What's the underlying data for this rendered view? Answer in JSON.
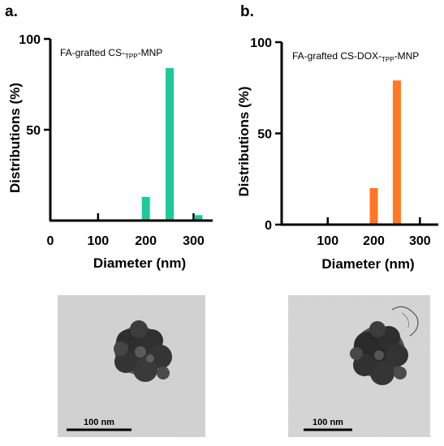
{
  "panels": [
    {
      "label": "a.",
      "annotation_prefix": "FA-grafted CS-",
      "annotation_sub": "TPP",
      "annotation_suffix": "-MNP"
    },
    {
      "label": "b.",
      "annotation_prefix": "FA-grafted CS-DOX-",
      "annotation_sub": "TPP",
      "annotation_suffix": "-MNP"
    }
  ],
  "chart_data": [
    {
      "type": "bar",
      "xlabel": "Diameter (nm)",
      "ylabel": "Distributions (%)",
      "xlim": [
        0,
        340
      ],
      "ylim": [
        0,
        100
      ],
      "xticks": [
        "0",
        "100",
        "200",
        "300"
      ],
      "yticks": [
        "50",
        "100"
      ],
      "color": "#1cc99a",
      "x": [
        200,
        250,
        310
      ],
      "values": [
        13,
        84,
        3
      ]
    },
    {
      "type": "bar",
      "xlabel": "Diameter (nm)",
      "ylabel": "Distributions (%)",
      "xlim": [
        0,
        340
      ],
      "ylim": [
        0,
        100
      ],
      "xticks": [
        "100",
        "200",
        "300"
      ],
      "yticks": [
        "0",
        "50",
        "100"
      ],
      "color": "#ff7722",
      "x": [
        200,
        250
      ],
      "values": [
        20,
        79
      ]
    }
  ],
  "scale_bars": [
    "100 nm",
    "100 nm"
  ]
}
